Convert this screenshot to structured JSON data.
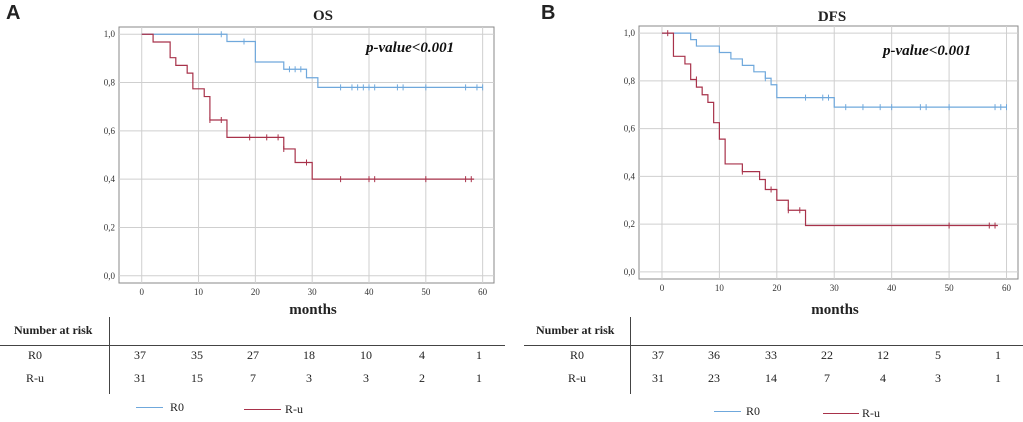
{
  "figure": {
    "panels": [
      {
        "letter": "A",
        "title": "OS",
        "pvalue": "p-value<0.001",
        "xlabel": "months",
        "risk_title": "Number  at risk",
        "rows": [
          {
            "label": "R0",
            "values": [
              "37",
              "35",
              "27",
              "18",
              "10",
              "4",
              "1"
            ]
          },
          {
            "label": "R-u",
            "values": [
              "31",
              "15",
              "7",
              "3",
              "3",
              "2",
              "1"
            ]
          }
        ],
        "legend": [
          {
            "name": "R0"
          },
          {
            "name": "R-u"
          }
        ]
      },
      {
        "letter": "B",
        "title": "DFS",
        "pvalue": "p-value<0.001",
        "xlabel": "months",
        "risk_title": "Number at risk",
        "rows": [
          {
            "label": "R0",
            "values": [
              "37",
              "36",
              "33",
              "22",
              "12",
              "5",
              "1"
            ]
          },
          {
            "label": "R-u",
            "values": [
              "31",
              "23",
              "14",
              "7",
              "4",
              "3",
              "1"
            ]
          }
        ],
        "legend": [
          {
            "name": "R0"
          },
          {
            "name": "R-u"
          }
        ]
      }
    ]
  },
  "chart_data": [
    {
      "type": "line",
      "title": "OS",
      "xlabel": "months",
      "ylabel": "",
      "xlim": [
        -4,
        62
      ],
      "ylim": [
        -0.03,
        1.03
      ],
      "x_ticks": [
        "0",
        "10",
        "20",
        "30",
        "40",
        "50",
        "60"
      ],
      "y_ticks": [
        "0,0",
        "0,2",
        "0,4",
        "0,6",
        "0,8",
        "1,0"
      ],
      "annotation": "p-value<0.001",
      "colors": {
        "R0": "#6fa8dc",
        "R-u": "#a8324a"
      },
      "series": [
        {
          "name": "R0",
          "steps": [
            [
              0,
              1.0
            ],
            [
              15,
              0.97
            ],
            [
              20,
              0.885
            ],
            [
              25,
              0.855
            ],
            [
              29,
              0.82
            ],
            [
              31,
              0.78
            ],
            [
              60,
              0.78
            ]
          ],
          "censor": [
            [
              14,
              1.0
            ],
            [
              18,
              0.97
            ],
            [
              26,
              0.855
            ],
            [
              27,
              0.855
            ],
            [
              28,
              0.855
            ],
            [
              35,
              0.78
            ],
            [
              37,
              0.78
            ],
            [
              38,
              0.78
            ],
            [
              39,
              0.78
            ],
            [
              40,
              0.78
            ],
            [
              41,
              0.78
            ],
            [
              45,
              0.78
            ],
            [
              46,
              0.78
            ],
            [
              50,
              0.78
            ],
            [
              57,
              0.78
            ],
            [
              59,
              0.78
            ],
            [
              60,
              0.78
            ]
          ]
        },
        {
          "name": "R-u",
          "steps": [
            [
              0,
              1.0
            ],
            [
              2,
              0.968
            ],
            [
              5,
              0.903
            ],
            [
              6,
              0.871
            ],
            [
              8,
              0.839
            ],
            [
              9,
              0.774
            ],
            [
              11,
              0.742
            ],
            [
              12,
              0.645
            ],
            [
              15,
              0.573
            ],
            [
              25,
              0.525
            ],
            [
              27,
              0.469
            ],
            [
              30,
              0.4
            ],
            [
              58.5,
              0.4
            ]
          ],
          "censor": [
            [
              12,
              0.645
            ],
            [
              14,
              0.645
            ],
            [
              19,
              0.573
            ],
            [
              22,
              0.573
            ],
            [
              24,
              0.573
            ],
            [
              25,
              0.525
            ],
            [
              29,
              0.469
            ],
            [
              35,
              0.4
            ],
            [
              40,
              0.4
            ],
            [
              41,
              0.4
            ],
            [
              50,
              0.4
            ],
            [
              57,
              0.4
            ],
            [
              58,
              0.4
            ]
          ]
        }
      ]
    },
    {
      "type": "line",
      "title": "DFS",
      "xlabel": "months",
      "ylabel": "",
      "xlim": [
        -4,
        62
      ],
      "ylim": [
        -0.03,
        1.03
      ],
      "x_ticks": [
        "0",
        "10",
        "20",
        "30",
        "40",
        "50",
        "60"
      ],
      "y_ticks": [
        "0,0",
        "0,2",
        "0,4",
        "0,6",
        "0,8",
        "1,0"
      ],
      "annotation": "p-value<0.001",
      "colors": {
        "R0": "#6fa8dc",
        "R-u": "#a8324a"
      },
      "series": [
        {
          "name": "R0",
          "steps": [
            [
              0,
              1.0
            ],
            [
              5,
              0.973
            ],
            [
              6,
              0.946
            ],
            [
              10,
              0.919
            ],
            [
              12,
              0.892
            ],
            [
              14,
              0.865
            ],
            [
              16,
              0.838
            ],
            [
              18,
              0.811
            ],
            [
              19,
              0.784
            ],
            [
              20,
              0.73
            ],
            [
              29,
              0.73
            ],
            [
              30,
              0.69
            ],
            [
              60,
              0.69
            ]
          ],
          "censor": [
            [
              18,
              0.811
            ],
            [
              25,
              0.73
            ],
            [
              28,
              0.73
            ],
            [
              29,
              0.73
            ],
            [
              32,
              0.69
            ],
            [
              35,
              0.69
            ],
            [
              38,
              0.69
            ],
            [
              40,
              0.69
            ],
            [
              45,
              0.69
            ],
            [
              46,
              0.69
            ],
            [
              50,
              0.69
            ],
            [
              58,
              0.69
            ],
            [
              59,
              0.69
            ],
            [
              60,
              0.69
            ]
          ]
        },
        {
          "name": "R-u",
          "steps": [
            [
              0,
              1.0
            ],
            [
              2,
              0.903
            ],
            [
              4,
              0.871
            ],
            [
              5,
              0.806
            ],
            [
              6,
              0.774
            ],
            [
              7,
              0.742
            ],
            [
              8,
              0.71
            ],
            [
              9,
              0.625
            ],
            [
              10,
              0.556
            ],
            [
              11,
              0.452
            ],
            [
              14,
              0.42
            ],
            [
              17,
              0.387
            ],
            [
              18,
              0.345
            ],
            [
              20,
              0.3
            ],
            [
              22,
              0.258
            ],
            [
              25,
              0.194
            ],
            [
              58.5,
              0.194
            ]
          ],
          "censor": [
            [
              1,
              1.0
            ],
            [
              6,
              0.806
            ],
            [
              14,
              0.42
            ],
            [
              19,
              0.345
            ],
            [
              22,
              0.258
            ],
            [
              24,
              0.258
            ],
            [
              50,
              0.194
            ],
            [
              57,
              0.194
            ],
            [
              58,
              0.194
            ]
          ]
        }
      ]
    }
  ]
}
